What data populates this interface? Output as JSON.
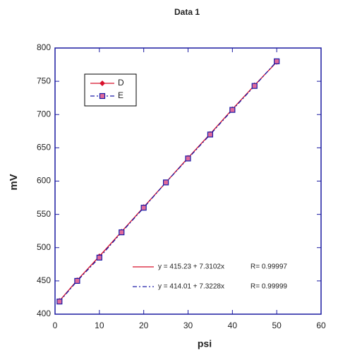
{
  "chart_data": {
    "type": "line",
    "title": "Data 1",
    "x_label": "psi",
    "y_label": "mV",
    "x": [
      1,
      5,
      10,
      15,
      20,
      25,
      30,
      35,
      40,
      45,
      50
    ],
    "series": [
      {
        "name": "D",
        "color": "#d8102a",
        "marker": "diamond",
        "dash": "solid",
        "values": [
          420,
          451,
          487,
          524,
          561,
          598,
          635,
          671,
          708,
          744,
          779
        ]
      },
      {
        "name": "E",
        "color": "#1a1aa6",
        "marker": "square",
        "dash": "dashed",
        "values": [
          419,
          450,
          485,
          523,
          560,
          598,
          634,
          670,
          707,
          743,
          780
        ]
      }
    ],
    "xlim": [
      0,
      60
    ],
    "xticks": [
      0,
      10,
      20,
      30,
      40,
      50,
      60
    ],
    "ylim": [
      400,
      800
    ],
    "yticks": [
      400,
      450,
      500,
      550,
      600,
      650,
      700,
      750,
      800
    ],
    "legend": "upper left",
    "annotations": [
      {
        "text": "y = 415.23 + 7.3102x",
        "r": "R= 0.99997",
        "color": "#d8102a",
        "dash": "solid"
      },
      {
        "text": "y = 414.01 + 7.3228x",
        "r": "R= 0.99999",
        "color": "#1a1aa6",
        "dash": "dashed"
      }
    ]
  }
}
